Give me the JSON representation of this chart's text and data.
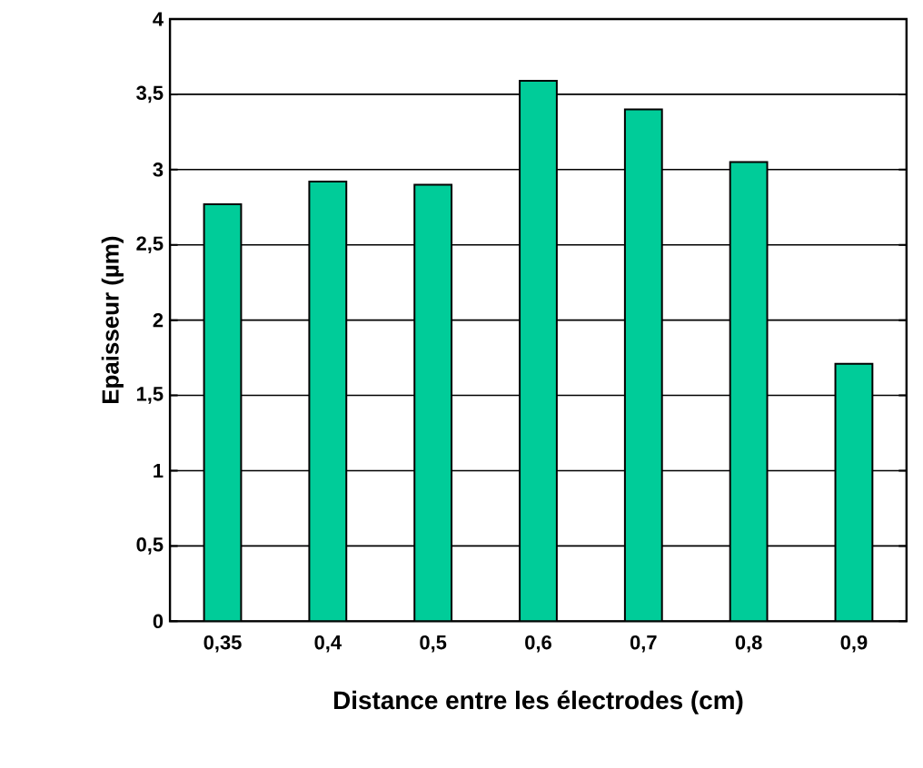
{
  "chart_data": {
    "type": "bar",
    "xlabel": "Distance entre les électrodes (cm)",
    "ylabel": "Epaisseur (µm)",
    "categories": [
      "0,35",
      "0,4",
      "0,5",
      "0,6",
      "0,7",
      "0,8",
      "0,9"
    ],
    "values": [
      2.77,
      2.92,
      2.9,
      3.59,
      3.4,
      3.05,
      1.71
    ],
    "color": "#00cc99",
    "ylim": [
      0,
      4
    ],
    "yticks": [
      0,
      {
        "value": 0.5,
        "label": "0,5"
      },
      1,
      {
        "value": 1.5,
        "label": "1,5"
      },
      2,
      {
        "value": 2.5,
        "label": "2,5"
      },
      3,
      {
        "value": 3.5,
        "label": "3,5"
      },
      4
    ],
    "grid": "y"
  }
}
